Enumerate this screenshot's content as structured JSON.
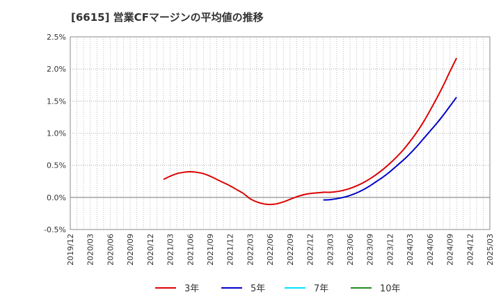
{
  "chart_data": {
    "type": "line",
    "title": "[6615]  営業CFマージンの平均値の推移",
    "xlabel": "",
    "ylabel": "",
    "ylim": [
      -0.5,
      2.5
    ],
    "y_ticks": [
      "2.5%",
      "2.0%",
      "1.5%",
      "1.0%",
      "0.5%",
      "0.0%",
      "-0.5%"
    ],
    "x_ticks": [
      "2019/12",
      "2020/03",
      "2020/06",
      "2020/09",
      "2020/12",
      "2021/03",
      "2021/06",
      "2021/09",
      "2021/12",
      "2022/03",
      "2022/06",
      "2022/09",
      "2022/12",
      "2023/03",
      "2023/06",
      "2023/09",
      "2023/12",
      "2024/03",
      "2024/06",
      "2024/09",
      "2024/12",
      "2025/03"
    ],
    "grid": true,
    "legend_position": "bottom",
    "series": [
      {
        "name": "3年",
        "color": "#dd0000",
        "points": [
          [
            "2021/02",
            0.28
          ],
          [
            "2021/03",
            0.33
          ],
          [
            "2021/04",
            0.37
          ],
          [
            "2021/05",
            0.39
          ],
          [
            "2021/06",
            0.4
          ],
          [
            "2021/07",
            0.39
          ],
          [
            "2021/08",
            0.37
          ],
          [
            "2021/09",
            0.33
          ],
          [
            "2021/10",
            0.28
          ],
          [
            "2021/11",
            0.23
          ],
          [
            "2021/12",
            0.18
          ],
          [
            "2022/01",
            0.12
          ],
          [
            "2022/02",
            0.06
          ],
          [
            "2022/03",
            -0.02
          ],
          [
            "2022/04",
            -0.07
          ],
          [
            "2022/05",
            -0.1
          ],
          [
            "2022/06",
            -0.11
          ],
          [
            "2022/07",
            -0.1
          ],
          [
            "2022/08",
            -0.07
          ],
          [
            "2022/09",
            -0.03
          ],
          [
            "2022/10",
            0.01
          ],
          [
            "2022/11",
            0.04
          ],
          [
            "2022/12",
            0.06
          ],
          [
            "2023/01",
            0.07
          ],
          [
            "2023/02",
            0.08
          ],
          [
            "2023/03",
            0.08
          ],
          [
            "2023/04",
            0.09
          ],
          [
            "2023/05",
            0.11
          ],
          [
            "2023/06",
            0.14
          ],
          [
            "2023/07",
            0.18
          ],
          [
            "2023/08",
            0.23
          ],
          [
            "2023/09",
            0.29
          ],
          [
            "2023/10",
            0.36
          ],
          [
            "2023/11",
            0.44
          ],
          [
            "2023/12",
            0.53
          ],
          [
            "2024/01",
            0.63
          ],
          [
            "2024/02",
            0.74
          ],
          [
            "2024/03",
            0.87
          ],
          [
            "2024/04",
            1.01
          ],
          [
            "2024/05",
            1.17
          ],
          [
            "2024/06",
            1.35
          ],
          [
            "2024/07",
            1.54
          ],
          [
            "2024/08",
            1.74
          ],
          [
            "2024/09",
            1.96
          ],
          [
            "2024/10",
            2.17
          ]
        ]
      },
      {
        "name": "5年",
        "color": "#0000cc",
        "points": [
          [
            "2023/02",
            -0.04
          ],
          [
            "2023/03",
            -0.035
          ],
          [
            "2023/04",
            -0.02
          ],
          [
            "2023/05",
            0.0
          ],
          [
            "2023/06",
            0.03
          ],
          [
            "2023/07",
            0.07
          ],
          [
            "2023/08",
            0.12
          ],
          [
            "2023/09",
            0.18
          ],
          [
            "2023/10",
            0.25
          ],
          [
            "2023/11",
            0.32
          ],
          [
            "2023/12",
            0.4
          ],
          [
            "2024/01",
            0.49
          ],
          [
            "2024/02",
            0.58
          ],
          [
            "2024/03",
            0.68
          ],
          [
            "2024/04",
            0.79
          ],
          [
            "2024/05",
            0.91
          ],
          [
            "2024/06",
            1.03
          ],
          [
            "2024/07",
            1.15
          ],
          [
            "2024/08",
            1.28
          ],
          [
            "2024/09",
            1.42
          ],
          [
            "2024/10",
            1.56
          ]
        ]
      },
      {
        "name": "7年",
        "color": "#00e5ff",
        "points": []
      },
      {
        "name": "10年",
        "color": "#228b22",
        "points": []
      }
    ]
  }
}
